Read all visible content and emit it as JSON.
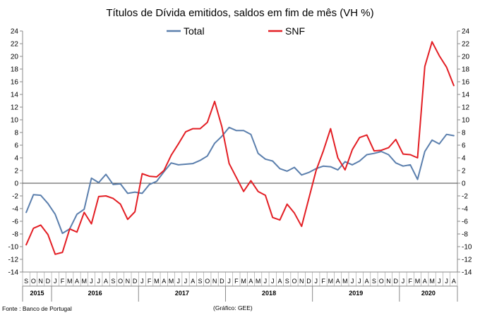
{
  "chart_data": {
    "type": "line",
    "title": "Títulos de Dívida emitidos, saldos em fim de mês  (VH %)",
    "ylim": [
      -14,
      24
    ],
    "ytick_step": 2,
    "ytick_labels": [
      "-14",
      "-12",
      "-10",
      "-8",
      "-6",
      "-4",
      "-2",
      "0",
      "2",
      "4",
      "6",
      "8",
      "10",
      "12",
      "14",
      "16",
      "18",
      "20",
      "22",
      "24"
    ],
    "axes": "left and right",
    "grid": false,
    "legend_position": "top-center",
    "x": [
      "S",
      "O",
      "N",
      "D",
      "J",
      "F",
      "M",
      "A",
      "M",
      "J",
      "J",
      "A",
      "S",
      "O",
      "N",
      "D",
      "J",
      "F",
      "M",
      "A",
      "M",
      "J",
      "J",
      "A",
      "S",
      "O",
      "N",
      "D",
      "J",
      "F",
      "M",
      "A",
      "M",
      "J",
      "J",
      "A",
      "S",
      "O",
      "N",
      "D",
      "J",
      "F",
      "M",
      "A",
      "M",
      "J",
      "J",
      "A",
      "S",
      "O",
      "N",
      "D",
      "J",
      "F",
      "M",
      "A",
      "M",
      "J",
      "J",
      "A"
    ],
    "year_labels": [
      {
        "label": "2015",
        "span": 4
      },
      {
        "label": "2016",
        "span": 12
      },
      {
        "label": "2017",
        "span": 12
      },
      {
        "label": "2018",
        "span": 12
      },
      {
        "label": "2019",
        "span": 12
      },
      {
        "label": "2020",
        "span": 8
      }
    ],
    "series": [
      {
        "name": "Total",
        "color": "#5B7FAD",
        "values": [
          -4.6,
          -1.8,
          -1.9,
          -3.2,
          -4.9,
          -7.9,
          -7.2,
          -4.9,
          -4.1,
          0.8,
          0.1,
          1.4,
          -0.2,
          -0.1,
          -1.6,
          -1.4,
          -1.6,
          -0.2,
          0.3,
          1.8,
          3.2,
          2.9,
          3.0,
          3.1,
          3.6,
          4.3,
          6.3,
          7.4,
          8.8,
          8.3,
          8.3,
          7.7,
          4.7,
          3.8,
          3.5,
          2.3,
          1.9,
          2.5,
          1.3,
          1.7,
          2.3,
          2.7,
          2.6,
          2.1,
          3.4,
          2.9,
          3.5,
          4.5,
          4.7,
          5.0,
          4.5,
          3.2,
          2.7,
          2.9,
          0.6,
          5.0,
          6.8,
          6.2,
          7.7,
          7.5
        ]
      },
      {
        "name": "SNF",
        "color": "#E31E24",
        "values": [
          -9.7,
          -7.1,
          -6.6,
          -8.1,
          -11.2,
          -10.9,
          -7.2,
          -7.7,
          -4.6,
          -6.4,
          -2.1,
          -2.0,
          -2.4,
          -3.3,
          -5.7,
          -4.5,
          1.5,
          1.1,
          1.0,
          2.0,
          4.4,
          6.2,
          8.1,
          8.6,
          8.6,
          9.6,
          12.9,
          8.9,
          3.1,
          0.9,
          -1.3,
          0.4,
          -1.3,
          -1.9,
          -5.4,
          -5.8,
          -3.3,
          -4.7,
          -6.8,
          -2.4,
          2.0,
          5.1,
          8.6,
          4.0,
          2.1,
          5.3,
          7.2,
          7.6,
          5.1,
          5.2,
          5.6,
          6.9,
          4.6,
          4.5,
          4.0,
          18.4,
          22.3,
          20.1,
          18.3,
          15.4
        ]
      }
    ]
  },
  "footer": {
    "source": "Fonte : Banco de Portugal",
    "credit": "(Gráfico: GEE)"
  }
}
